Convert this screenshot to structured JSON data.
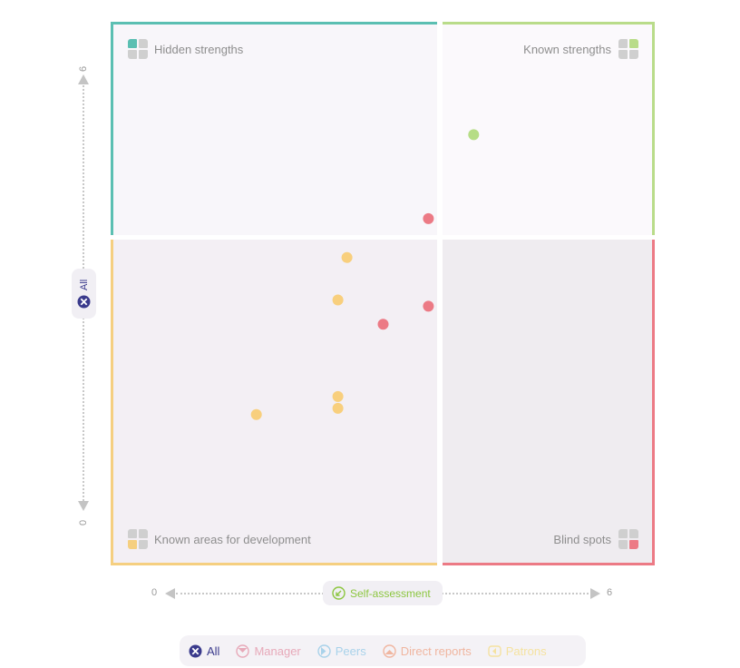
{
  "quadrants": {
    "hidden": {
      "label": "Hidden strengths",
      "color": "#5bbfb2"
    },
    "known": {
      "label": "Known strengths",
      "color": "#b9dc8a"
    },
    "development": {
      "label": "Known areas for development",
      "color": "#f5cf80"
    },
    "blind": {
      "label": "Blind spots",
      "color": "#ec7a85"
    }
  },
  "axes": {
    "x_label": "Self-assessment",
    "x_min_label": "0",
    "x_max_label": "6",
    "y_label": "All",
    "y_min_label": "0",
    "y_max_label": "6"
  },
  "legend": [
    {
      "label": "All",
      "icon": "cross-circle-icon",
      "color": "#3a3a8c",
      "active": true
    },
    {
      "label": "Manager",
      "icon": "manager-icon",
      "color": "#e7a9b9",
      "active": false
    },
    {
      "label": "Peers",
      "icon": "peers-icon",
      "color": "#a9d2ea",
      "active": false
    },
    {
      "label": "Direct reports",
      "icon": "direct-reports-icon",
      "color": "#f0b6a0",
      "active": false
    },
    {
      "label": "Patrons",
      "icon": "patrons-icon",
      "color": "#f5e2a0",
      "active": false
    }
  ],
  "chart_data": {
    "type": "scatter",
    "xlabel": "Self-assessment",
    "ylabel": "All",
    "xlim": [
      0,
      6
    ],
    "ylim": [
      0,
      6
    ],
    "grid": false,
    "points": [
      {
        "x": 4.0,
        "y": 4.76,
        "quadrant": "known",
        "color": "#b6dd86"
      },
      {
        "x": 3.5,
        "y": 3.83,
        "quadrant": "blind",
        "color": "#ec7a85"
      },
      {
        "x": 3.5,
        "y": 2.86,
        "quadrant": "blind",
        "color": "#ec7a85"
      },
      {
        "x": 3.0,
        "y": 2.66,
        "quadrant": "blind",
        "color": "#ec7a85"
      },
      {
        "x": 2.6,
        "y": 3.4,
        "quadrant": "development",
        "color": "#f8cf7d"
      },
      {
        "x": 2.5,
        "y": 2.93,
        "quadrant": "development",
        "color": "#f8cf7d"
      },
      {
        "x": 2.5,
        "y": 1.86,
        "quadrant": "development",
        "color": "#f8cf7d"
      },
      {
        "x": 2.5,
        "y": 1.73,
        "quadrant": "development",
        "color": "#f8cf7d"
      },
      {
        "x": 1.6,
        "y": 1.66,
        "quadrant": "development",
        "color": "#f8cf7d"
      }
    ]
  }
}
